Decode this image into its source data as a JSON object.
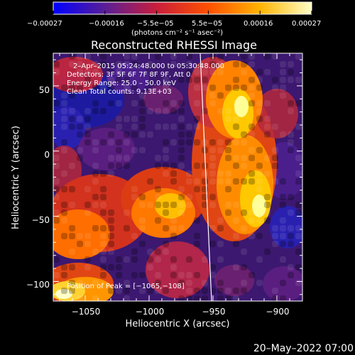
{
  "title": "Reconstructed RHESSI Image",
  "colorbar": {
    "tick_labels": [
      "−0.00027",
      "−0.00016",
      "−5.5e−05",
      "5.5e−05",
      "0.00016",
      "0.00027"
    ],
    "units": "(photons cm⁻² s⁻¹ asec⁻²)",
    "range": [
      -0.00027,
      0.00027
    ],
    "colors": [
      "#0000ff",
      "#5a1e96",
      "#c81e3c",
      "#ff5000",
      "#ffb400",
      "#ffffc8"
    ]
  },
  "info": {
    "time_range": "2–Apr–2015 05:24:48.000 to 05:30:48.000",
    "detectors": "Detectors: 3F 5F 6F 7F 8F 9F, Att 0",
    "energy": "Energy Range: 25.0 – 50.0 keV",
    "clean": "Clean    Total counts: 9.13E+03"
  },
  "peak_label": "Position of Peak = [−1065,−108]",
  "axes": {
    "xlabel": "Heliocentric X (arcsec)",
    "ylabel": "Heliocentric Y (arcsec)",
    "x_ticks": [
      "−1050",
      "−1000",
      "−950",
      "−900"
    ],
    "y_ticks": [
      "50",
      "0",
      "−50",
      "−100"
    ],
    "x_tick_values": [
      -1050,
      -1000,
      -950,
      -900
    ],
    "y_tick_values": [
      50,
      0,
      -50,
      -100
    ],
    "xlim": [
      -1075,
      -880
    ],
    "ylim": [
      -115,
      75
    ]
  },
  "footer_date": "20–May–2022 07:00"
}
